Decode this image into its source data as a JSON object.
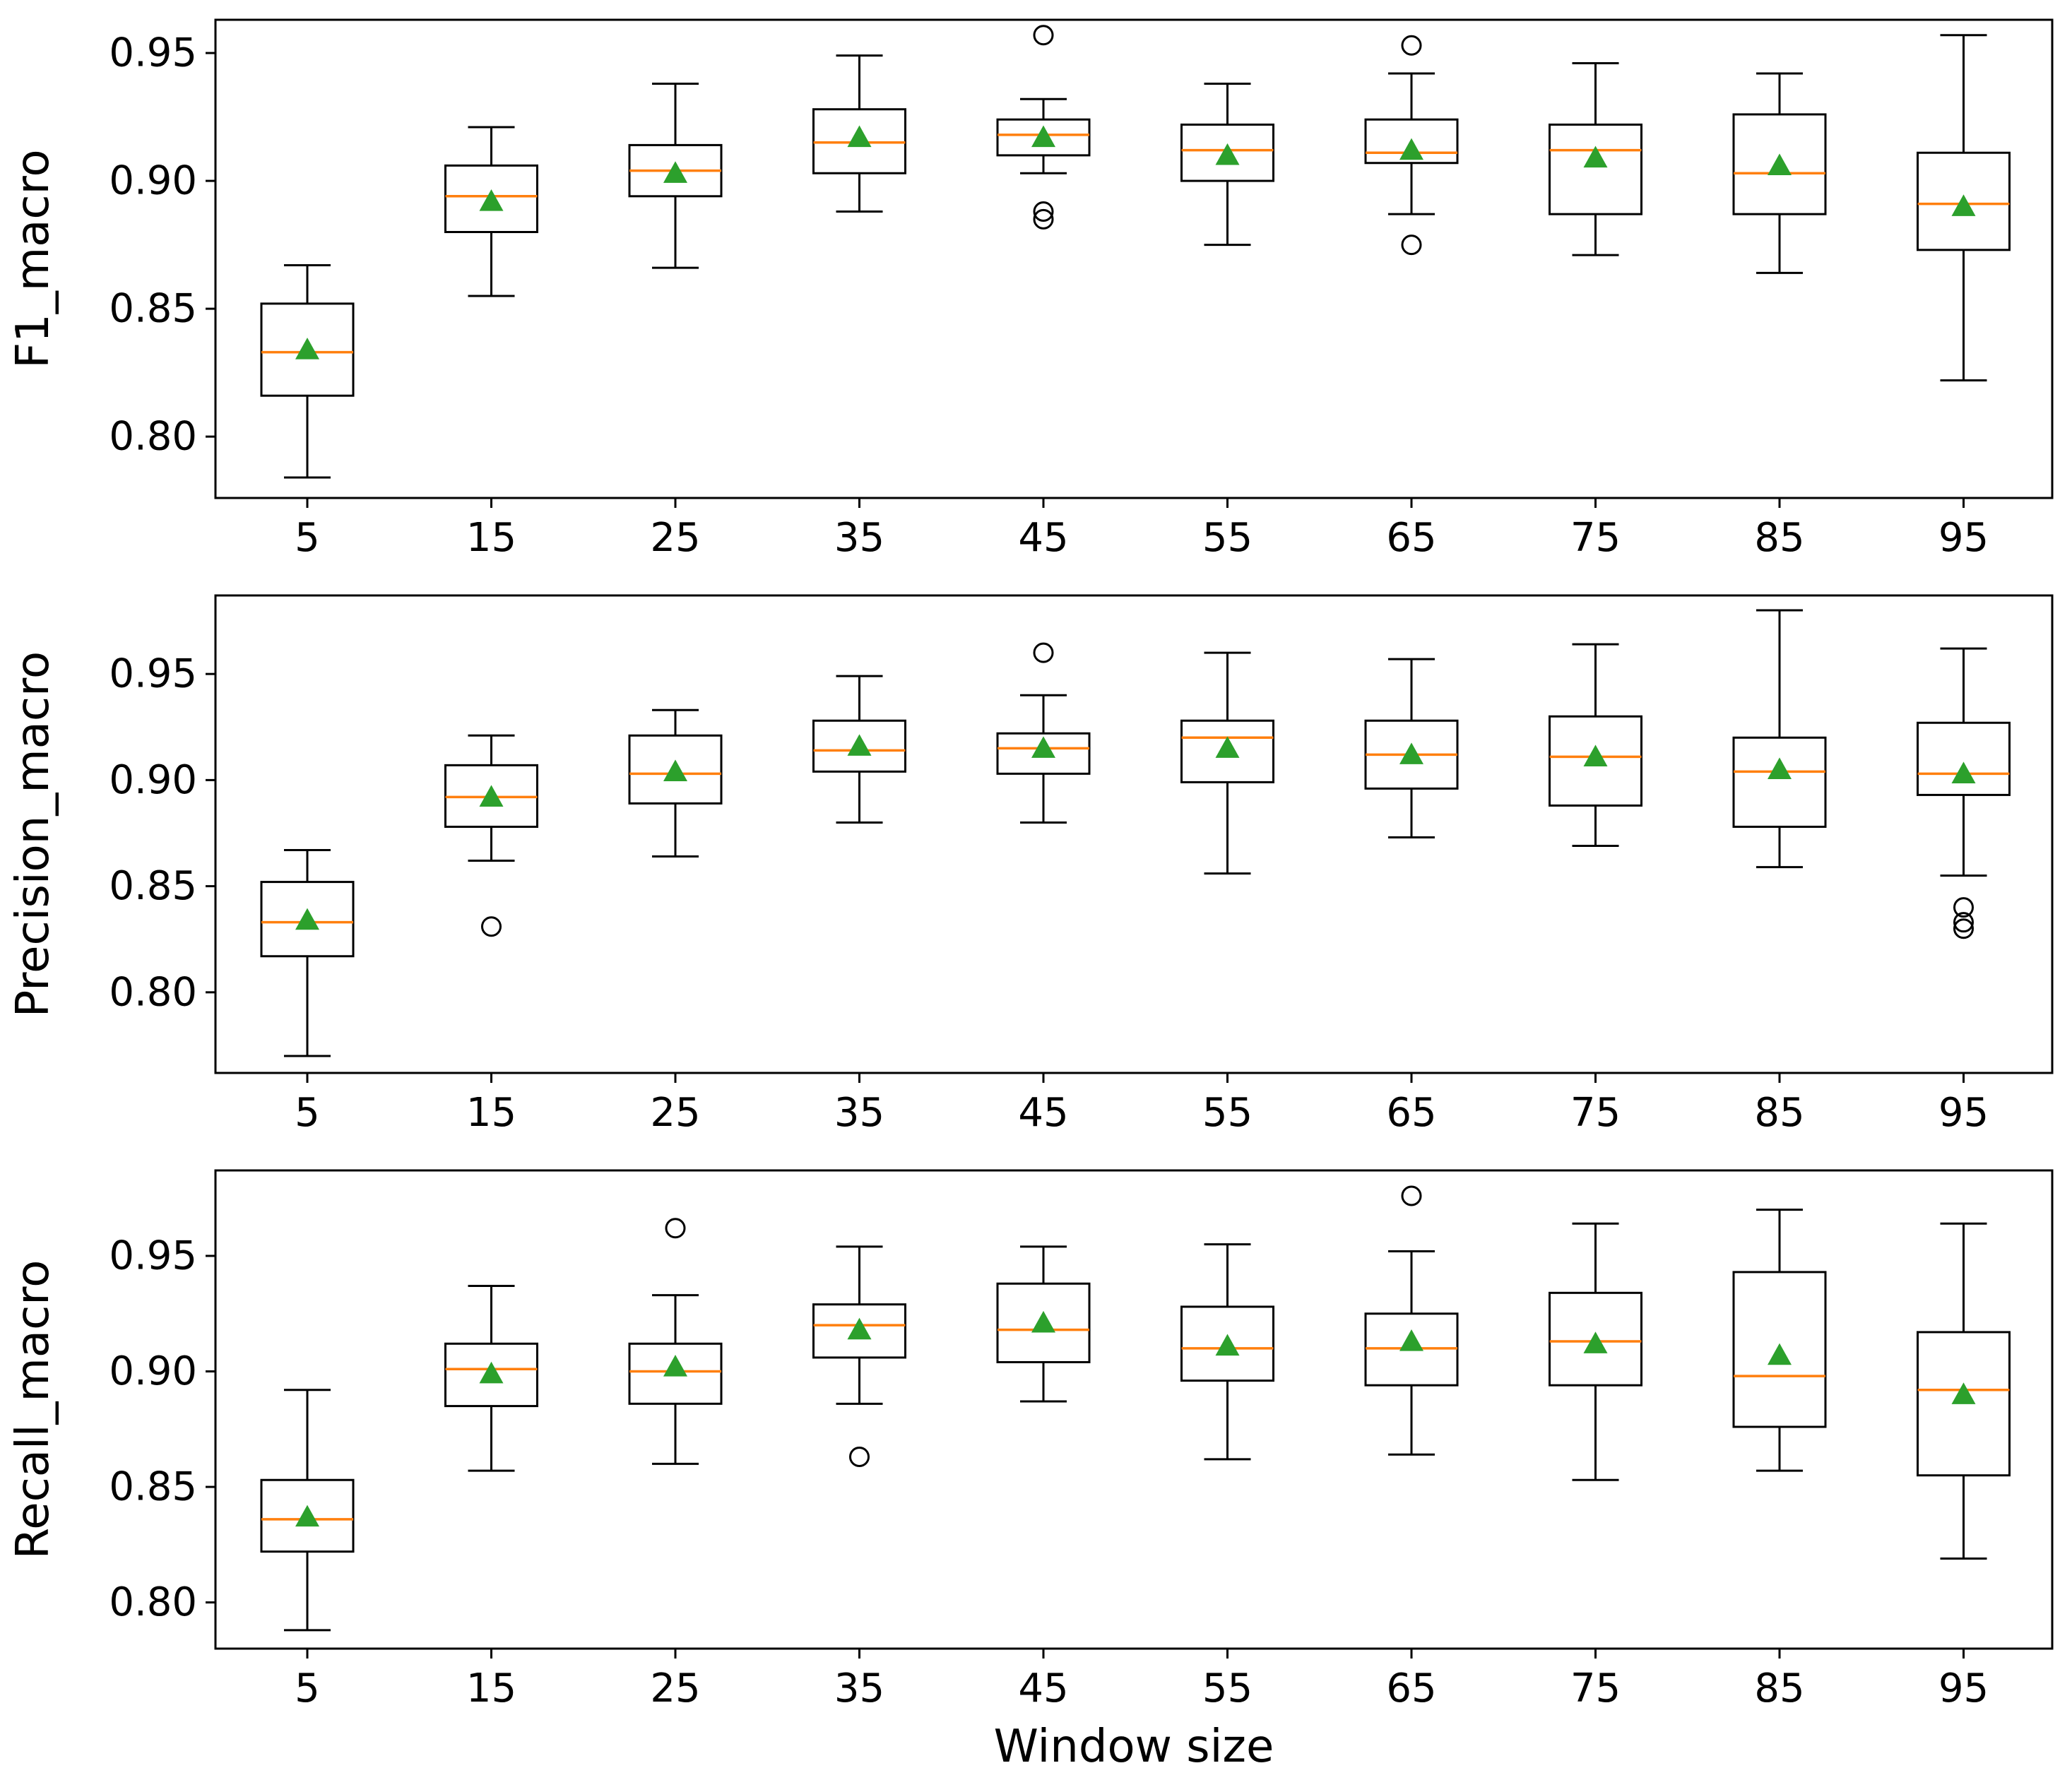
{
  "colors": {
    "median": "#ff7f0e",
    "mean": "#2ca02c",
    "box": "#000000",
    "background": "#ffffff"
  },
  "chart_data": [
    {
      "type": "boxplot",
      "ylabel": "F1_macro",
      "xlabel": "",
      "categories": [
        "5",
        "15",
        "25",
        "35",
        "45",
        "55",
        "65",
        "75",
        "85",
        "95"
      ],
      "ylim": [
        0.776,
        0.963
      ],
      "yticks": [
        0.8,
        0.85,
        0.9,
        0.95
      ],
      "ytick_labels": [
        "0.80",
        "0.85",
        "0.90",
        "0.95"
      ],
      "boxes": [
        {
          "whisker_low": 0.784,
          "q1": 0.816,
          "median": 0.833,
          "q3": 0.852,
          "whisker_high": 0.867,
          "mean": 0.834,
          "outliers": []
        },
        {
          "whisker_low": 0.855,
          "q1": 0.88,
          "median": 0.894,
          "q3": 0.906,
          "whisker_high": 0.921,
          "mean": 0.892,
          "outliers": []
        },
        {
          "whisker_low": 0.866,
          "q1": 0.894,
          "median": 0.904,
          "q3": 0.914,
          "whisker_high": 0.938,
          "mean": 0.903,
          "outliers": []
        },
        {
          "whisker_low": 0.888,
          "q1": 0.903,
          "median": 0.915,
          "q3": 0.928,
          "whisker_high": 0.949,
          "mean": 0.917,
          "outliers": []
        },
        {
          "whisker_low": 0.903,
          "q1": 0.91,
          "median": 0.918,
          "q3": 0.924,
          "whisker_high": 0.932,
          "mean": 0.917,
          "outliers": [
            0.957,
            0.888,
            0.885
          ]
        },
        {
          "whisker_low": 0.875,
          "q1": 0.9,
          "median": 0.912,
          "q3": 0.922,
          "whisker_high": 0.938,
          "mean": 0.91,
          "outliers": []
        },
        {
          "whisker_low": 0.887,
          "q1": 0.907,
          "median": 0.911,
          "q3": 0.924,
          "whisker_high": 0.942,
          "mean": 0.912,
          "outliers": [
            0.953,
            0.875
          ]
        },
        {
          "whisker_low": 0.871,
          "q1": 0.887,
          "median": 0.912,
          "q3": 0.922,
          "whisker_high": 0.946,
          "mean": 0.909,
          "outliers": []
        },
        {
          "whisker_low": 0.864,
          "q1": 0.887,
          "median": 0.903,
          "q3": 0.926,
          "whisker_high": 0.942,
          "mean": 0.906,
          "outliers": []
        },
        {
          "whisker_low": 0.822,
          "q1": 0.873,
          "median": 0.891,
          "q3": 0.911,
          "whisker_high": 0.957,
          "mean": 0.89,
          "outliers": []
        }
      ]
    },
    {
      "type": "boxplot",
      "ylabel": "Precision_macro",
      "xlabel": "",
      "categories": [
        "5",
        "15",
        "25",
        "35",
        "45",
        "55",
        "65",
        "75",
        "85",
        "95"
      ],
      "ylim": [
        0.762,
        0.987
      ],
      "yticks": [
        0.8,
        0.85,
        0.9,
        0.95
      ],
      "ytick_labels": [
        "0.80",
        "0.85",
        "0.90",
        "0.95"
      ],
      "boxes": [
        {
          "whisker_low": 0.77,
          "q1": 0.817,
          "median": 0.833,
          "q3": 0.852,
          "whisker_high": 0.867,
          "mean": 0.834,
          "outliers": []
        },
        {
          "whisker_low": 0.862,
          "q1": 0.878,
          "median": 0.892,
          "q3": 0.907,
          "whisker_high": 0.921,
          "mean": 0.892,
          "outliers": [
            0.831
          ]
        },
        {
          "whisker_low": 0.864,
          "q1": 0.889,
          "median": 0.903,
          "q3": 0.921,
          "whisker_high": 0.933,
          "mean": 0.904,
          "outliers": []
        },
        {
          "whisker_low": 0.88,
          "q1": 0.904,
          "median": 0.914,
          "q3": 0.928,
          "whisker_high": 0.949,
          "mean": 0.916,
          "outliers": []
        },
        {
          "whisker_low": 0.88,
          "q1": 0.903,
          "median": 0.915,
          "q3": 0.922,
          "whisker_high": 0.94,
          "mean": 0.915,
          "outliers": [
            0.96
          ]
        },
        {
          "whisker_low": 0.856,
          "q1": 0.899,
          "median": 0.92,
          "q3": 0.928,
          "whisker_high": 0.96,
          "mean": 0.915,
          "outliers": []
        },
        {
          "whisker_low": 0.873,
          "q1": 0.896,
          "median": 0.912,
          "q3": 0.928,
          "whisker_high": 0.957,
          "mean": 0.912,
          "outliers": []
        },
        {
          "whisker_low": 0.869,
          "q1": 0.888,
          "median": 0.911,
          "q3": 0.93,
          "whisker_high": 0.964,
          "mean": 0.911,
          "outliers": []
        },
        {
          "whisker_low": 0.859,
          "q1": 0.878,
          "median": 0.904,
          "q3": 0.92,
          "whisker_high": 0.98,
          "mean": 0.905,
          "outliers": []
        },
        {
          "whisker_low": 0.855,
          "q1": 0.893,
          "median": 0.903,
          "q3": 0.927,
          "whisker_high": 0.962,
          "mean": 0.903,
          "outliers": [
            0.84,
            0.833,
            0.83
          ]
        }
      ]
    },
    {
      "type": "boxplot",
      "ylabel": "Recall_macro",
      "xlabel": "Window size",
      "categories": [
        "5",
        "15",
        "25",
        "35",
        "45",
        "55",
        "65",
        "75",
        "85",
        "95"
      ],
      "ylim": [
        0.78,
        0.987
      ],
      "yticks": [
        0.8,
        0.85,
        0.9,
        0.95
      ],
      "ytick_labels": [
        "0.80",
        "0.85",
        "0.90",
        "0.95"
      ],
      "boxes": [
        {
          "whisker_low": 0.788,
          "q1": 0.822,
          "median": 0.836,
          "q3": 0.853,
          "whisker_high": 0.892,
          "mean": 0.837,
          "outliers": []
        },
        {
          "whisker_low": 0.857,
          "q1": 0.885,
          "median": 0.901,
          "q3": 0.912,
          "whisker_high": 0.937,
          "mean": 0.899,
          "outliers": []
        },
        {
          "whisker_low": 0.86,
          "q1": 0.886,
          "median": 0.9,
          "q3": 0.912,
          "whisker_high": 0.933,
          "mean": 0.902,
          "outliers": [
            0.962
          ]
        },
        {
          "whisker_low": 0.886,
          "q1": 0.906,
          "median": 0.92,
          "q3": 0.929,
          "whisker_high": 0.954,
          "mean": 0.918,
          "outliers": [
            0.863
          ]
        },
        {
          "whisker_low": 0.887,
          "q1": 0.904,
          "median": 0.918,
          "q3": 0.938,
          "whisker_high": 0.954,
          "mean": 0.921,
          "outliers": []
        },
        {
          "whisker_low": 0.862,
          "q1": 0.896,
          "median": 0.91,
          "q3": 0.928,
          "whisker_high": 0.955,
          "mean": 0.911,
          "outliers": []
        },
        {
          "whisker_low": 0.864,
          "q1": 0.894,
          "median": 0.91,
          "q3": 0.925,
          "whisker_high": 0.952,
          "mean": 0.913,
          "outliers": [
            0.976
          ]
        },
        {
          "whisker_low": 0.853,
          "q1": 0.894,
          "median": 0.913,
          "q3": 0.934,
          "whisker_high": 0.964,
          "mean": 0.912,
          "outliers": []
        },
        {
          "whisker_low": 0.857,
          "q1": 0.876,
          "median": 0.898,
          "q3": 0.943,
          "whisker_high": 0.97,
          "mean": 0.907,
          "outliers": []
        },
        {
          "whisker_low": 0.819,
          "q1": 0.855,
          "median": 0.892,
          "q3": 0.917,
          "whisker_high": 0.964,
          "mean": 0.89,
          "outliers": []
        }
      ]
    }
  ]
}
